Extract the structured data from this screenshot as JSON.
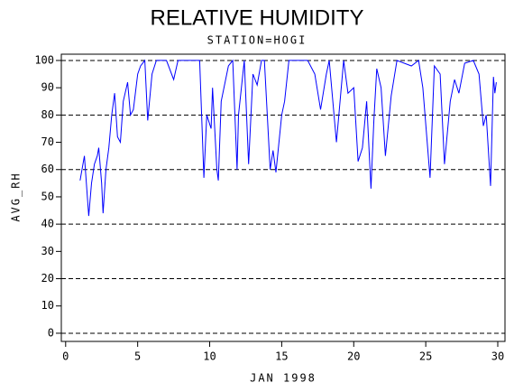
{
  "chart_data": {
    "type": "line",
    "title": "RELATIVE HUMIDITY",
    "subtitle": "STATION=HOGI",
    "x_label": "JAN 1998",
    "y_label": "AVG_RH",
    "x": [
      1.0,
      1.3,
      1.6,
      1.8,
      2.0,
      2.2,
      2.3,
      2.5,
      2.6,
      2.8,
      3.0,
      3.2,
      3.4,
      3.6,
      3.8,
      4.0,
      4.3,
      4.5,
      4.7,
      5.0,
      5.2,
      5.5,
      5.7,
      6.0,
      6.3,
      7.0,
      7.5,
      7.8,
      8.3,
      9.3,
      9.6,
      9.8,
      10.1,
      10.2,
      10.5,
      10.6,
      10.8,
      11.3,
      11.6,
      11.9,
      12.0,
      12.4,
      12.7,
      13.0,
      13.3,
      13.6,
      13.8,
      14.2,
      14.4,
      14.6,
      15.0,
      15.2,
      15.5,
      16.8,
      17.3,
      17.7,
      18.1,
      18.3,
      18.8,
      19.1,
      19.3,
      19.6,
      20.0,
      20.3,
      20.6,
      20.9,
      21.2,
      21.4,
      21.6,
      21.9,
      22.2,
      22.6,
      23.0,
      24.0,
      24.5,
      24.8,
      25.3,
      25.6,
      26.0,
      26.3,
      26.7,
      27.0,
      27.3,
      27.7,
      28.3,
      28.7,
      29.0,
      29.2,
      29.5,
      29.7,
      29.8,
      29.9
    ],
    "series": [
      {
        "name": "AVG_RH",
        "color": "#0000ff",
        "values": [
          56,
          65,
          43,
          55,
          62,
          65,
          68,
          55,
          44,
          60,
          68,
          80,
          88,
          72,
          70,
          85,
          92,
          80,
          82,
          95,
          98,
          100,
          78,
          95,
          100,
          100,
          93,
          100,
          100,
          100,
          57,
          80,
          75,
          90,
          60,
          56,
          85,
          98,
          100,
          60,
          80,
          100,
          62,
          95,
          91,
          100,
          100,
          60,
          67,
          59,
          80,
          85,
          100,
          100,
          95,
          82,
          95,
          100,
          70,
          88,
          100,
          88,
          90,
          63,
          68,
          85,
          53,
          78,
          97,
          90,
          65,
          87,
          100,
          98,
          100,
          90,
          57,
          98,
          95,
          62,
          85,
          93,
          88,
          99,
          100,
          95,
          76,
          80,
          54,
          94,
          88,
          92
        ]
      }
    ],
    "xlim": [
      -0.3,
      30.5
    ],
    "xticks": [
      0,
      5,
      10,
      15,
      20,
      25,
      30
    ],
    "ylim": [
      -3,
      102.3
    ],
    "yticks": [
      0,
      10,
      20,
      30,
      40,
      50,
      60,
      70,
      80,
      90,
      100
    ],
    "grid_values": [
      0,
      20,
      40,
      60,
      80,
      100
    ]
  }
}
